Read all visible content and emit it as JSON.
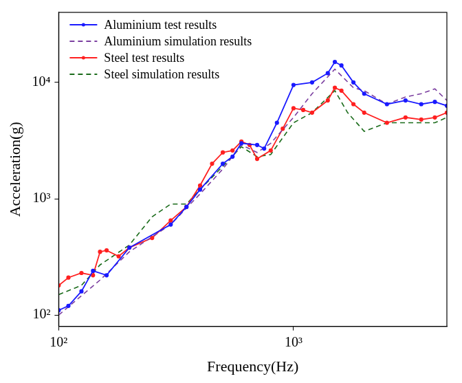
{
  "chart_data": {
    "type": "line",
    "x_label": "Frequency(Hz)",
    "y_label": "Acceleration(g)",
    "log": true,
    "grid": false,
    "legend": "upper left",
    "xlim": [
      100,
      4500
    ],
    "ylim": [
      80,
      40000
    ],
    "xticks": [
      {
        "value": 100,
        "label": "10²"
      },
      {
        "value": 1000,
        "label": "10³"
      }
    ],
    "yticks": [
      {
        "value": 100,
        "label": "10²"
      },
      {
        "value": 1000,
        "label": "10³"
      },
      {
        "value": 10000,
        "label": "10⁴"
      }
    ],
    "series": [
      {
        "name": "Aluminium test results",
        "color": "#1a1aff",
        "line_style": "solid",
        "marker": "circle",
        "x": [
          100,
          110,
          125,
          140,
          160,
          200,
          300,
          350,
          400,
          500,
          550,
          600,
          700,
          750,
          850,
          1000,
          1200,
          1400,
          1500,
          1600,
          1800,
          2000,
          2500,
          3000,
          3500,
          4000,
          4500
        ],
        "values": [
          110,
          120,
          160,
          240,
          220,
          380,
          600,
          850,
          1200,
          2000,
          2300,
          3000,
          2900,
          2700,
          4500,
          9500,
          10000,
          12000,
          15000,
          14000,
          10000,
          8000,
          6500,
          7000,
          6500,
          6800,
          6300
        ]
      },
      {
        "name": "Aluminium simulation results",
        "color": "#7b3fa0",
        "line_style": "dashed",
        "marker": "none",
        "x": [
          100,
          150,
          200,
          300,
          400,
          500,
          600,
          700,
          800,
          1000,
          1200,
          1500,
          1800,
          2000,
          2500,
          3000,
          3500,
          4000,
          4500
        ],
        "values": [
          100,
          200,
          350,
          600,
          1100,
          1800,
          2900,
          2500,
          3000,
          5000,
          8000,
          13000,
          9000,
          8500,
          6500,
          7500,
          8000,
          8800,
          7000
        ]
      },
      {
        "name": "Steel test results",
        "color": "#ff2020",
        "line_style": "solid",
        "marker": "circle",
        "x": [
          100,
          110,
          125,
          140,
          150,
          160,
          180,
          200,
          250,
          300,
          350,
          400,
          450,
          500,
          550,
          600,
          650,
          700,
          800,
          900,
          1000,
          1100,
          1200,
          1400,
          1500,
          1600,
          1800,
          2000,
          2500,
          3000,
          3500,
          4000,
          4500
        ],
        "values": [
          180,
          210,
          230,
          220,
          350,
          360,
          320,
          380,
          460,
          650,
          850,
          1300,
          2000,
          2500,
          2600,
          3100,
          2900,
          2200,
          2600,
          4000,
          6000,
          5800,
          5500,
          7000,
          9000,
          8500,
          6500,
          5500,
          4500,
          5000,
          4800,
          5000,
          5500
        ]
      },
      {
        "name": "Steel simulation results",
        "color": "#1a6b1a",
        "line_style": "dashed",
        "marker": "none",
        "x": [
          100,
          125,
          150,
          200,
          250,
          300,
          350,
          400,
          500,
          600,
          700,
          800,
          1000,
          1200,
          1500,
          1700,
          2000,
          2500,
          3000,
          4000,
          4500
        ],
        "values": [
          150,
          180,
          270,
          400,
          700,
          900,
          900,
          1200,
          1900,
          2800,
          2300,
          2400,
          4500,
          5500,
          8500,
          5500,
          3800,
          4500,
          4500,
          4500,
          5000
        ]
      }
    ]
  }
}
